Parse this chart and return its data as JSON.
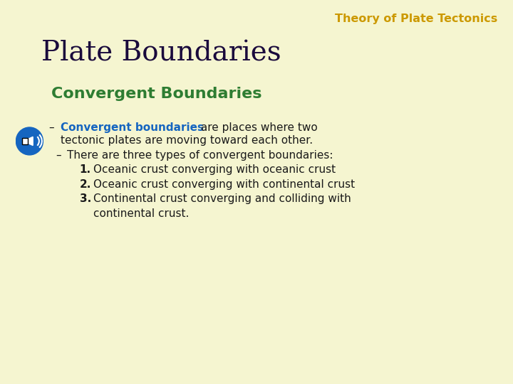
{
  "background_color": "#f5f5d0",
  "header_text": "Theory of Plate Tectonics",
  "header_color": "#cc9900",
  "header_fontsize": 11.5,
  "title_text": "Plate Boundaries",
  "title_color": "#1a0a3c",
  "title_fontsize": 28,
  "subtitle_text": "Convergent Boundaries",
  "subtitle_color": "#2e7d32",
  "subtitle_fontsize": 16,
  "body_color": "#1a1a1a",
  "body_fontsize": 11,
  "highlight_color": "#1565c0",
  "speaker_icon_color": "#1565c0",
  "speaker_icon_outline": "#0d47a1"
}
